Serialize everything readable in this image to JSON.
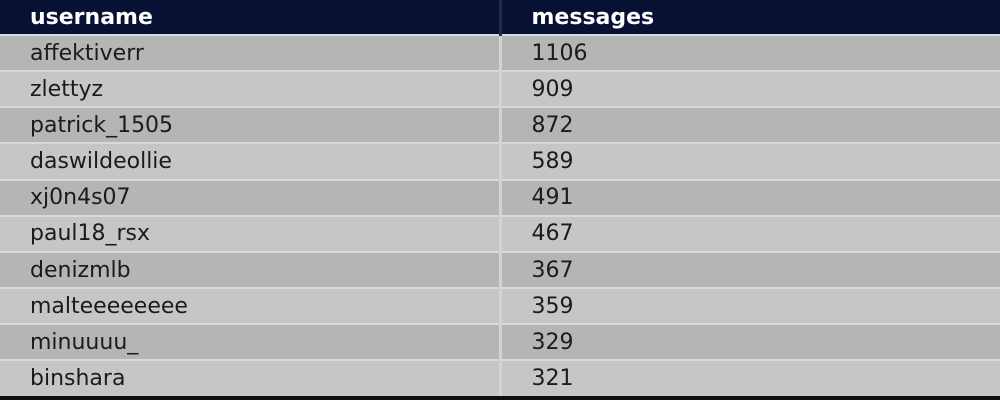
{
  "colors": {
    "header_bg": "#081034",
    "header_text": "#ffffff",
    "row_odd_bg": "#b5b5b5",
    "row_even_bg": "#c6c6c6",
    "row_separator": "#d6dade",
    "header_divider": "#232a4c",
    "body_text": "#1b1b1b",
    "bottom_border": "#0e0e0e"
  },
  "chart_data": {
    "type": "table",
    "columns": [
      "username",
      "messages"
    ],
    "rows": [
      {
        "username": "affektiverr",
        "messages": 1106
      },
      {
        "username": "zlettyz",
        "messages": 909
      },
      {
        "username": "patrick_1505",
        "messages": 872
      },
      {
        "username": "daswildeollie",
        "messages": 589
      },
      {
        "username": "xj0n4s07",
        "messages": 491
      },
      {
        "username": "paul18_rsx",
        "messages": 467
      },
      {
        "username": "denizmlb",
        "messages": 367
      },
      {
        "username": "malteeeeeeee",
        "messages": 359
      },
      {
        "username": "minuuuu_",
        "messages": 329
      },
      {
        "username": "binshara",
        "messages": 321
      }
    ]
  }
}
